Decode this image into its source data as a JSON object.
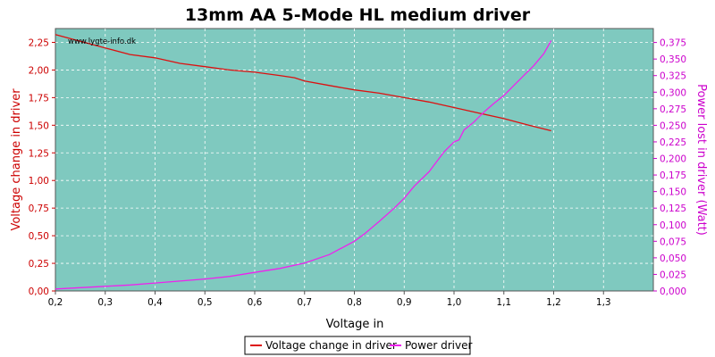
{
  "chart_data": {
    "type": "line",
    "title": "13mm AA 5-Mode HL medium driver",
    "watermark": "www.lygte-info.dk",
    "xlabel": "Voltage in",
    "ylabel_left": "Voltage change in driver",
    "ylabel_right": "Power lost in driver (Watt)",
    "xlim": [
      0.2,
      1.4
    ],
    "ylim_left": [
      0,
      2.375
    ],
    "ylim_right": [
      0,
      0.396
    ],
    "x_ticks": [
      "0,2",
      "0,3",
      "0,4",
      "0,5",
      "0,6",
      "0,7",
      "0,8",
      "0,9",
      "1,0",
      "1,1",
      "1,2",
      "1,3"
    ],
    "x_tick_values": [
      0.2,
      0.3,
      0.4,
      0.5,
      0.6,
      0.7,
      0.8,
      0.9,
      1.0,
      1.1,
      1.2,
      1.3
    ],
    "y_left_ticks": [
      "0,00",
      "0,25",
      "0,50",
      "0,75",
      "1,00",
      "1,25",
      "1,50",
      "1,75",
      "2,00",
      "2,25"
    ],
    "y_left_tick_values": [
      0,
      0.25,
      0.5,
      0.75,
      1.0,
      1.25,
      1.5,
      1.75,
      2.0,
      2.25
    ],
    "y_right_ticks": [
      "0,000",
      "0,025",
      "0,050",
      "0,075",
      "0,100",
      "0,125",
      "0,150",
      "0,175",
      "0,200",
      "0,225",
      "0,250",
      "0,275",
      "0,300",
      "0,325",
      "0,350",
      "0,375"
    ],
    "y_right_tick_values": [
      0,
      0.025,
      0.05,
      0.075,
      0.1,
      0.125,
      0.15,
      0.175,
      0.2,
      0.225,
      0.25,
      0.275,
      0.3,
      0.325,
      0.35,
      0.375
    ],
    "grid": true,
    "legend_position": "bottom-center",
    "colors": {
      "plot_bg": "#7fc9bf",
      "voltage": "#dd1010",
      "power": "#ee22ee",
      "left_axis": "#cc0000",
      "right_axis": "#cc00cc"
    },
    "series": [
      {
        "name": "Voltage change in driver",
        "axis": "left",
        "x": [
          0.2,
          0.25,
          0.3,
          0.35,
          0.4,
          0.45,
          0.5,
          0.55,
          0.6,
          0.65,
          0.68,
          0.7,
          0.75,
          0.8,
          0.85,
          0.9,
          0.95,
          1.0,
          1.05,
          1.1,
          1.15,
          1.195
        ],
        "y": [
          2.32,
          2.26,
          2.2,
          2.14,
          2.11,
          2.06,
          2.03,
          2.0,
          1.98,
          1.95,
          1.93,
          1.9,
          1.86,
          1.82,
          1.79,
          1.75,
          1.71,
          1.66,
          1.61,
          1.56,
          1.5,
          1.45
        ]
      },
      {
        "name": "Power driver",
        "axis": "right",
        "x": [
          0.2,
          0.25,
          0.3,
          0.35,
          0.4,
          0.45,
          0.5,
          0.55,
          0.6,
          0.65,
          0.7,
          0.75,
          0.8,
          0.82,
          0.85,
          0.88,
          0.9,
          0.92,
          0.95,
          0.97,
          0.98,
          1.0,
          1.01,
          1.02,
          1.04,
          1.06,
          1.08,
          1.1,
          1.12,
          1.14,
          1.16,
          1.18,
          1.195
        ],
        "y": [
          0.003,
          0.005,
          0.007,
          0.009,
          0.012,
          0.015,
          0.018,
          0.022,
          0.028,
          0.034,
          0.042,
          0.055,
          0.075,
          0.086,
          0.105,
          0.125,
          0.14,
          0.158,
          0.18,
          0.2,
          0.21,
          0.225,
          0.228,
          0.243,
          0.255,
          0.27,
          0.283,
          0.295,
          0.31,
          0.325,
          0.34,
          0.358,
          0.378
        ]
      }
    ]
  }
}
